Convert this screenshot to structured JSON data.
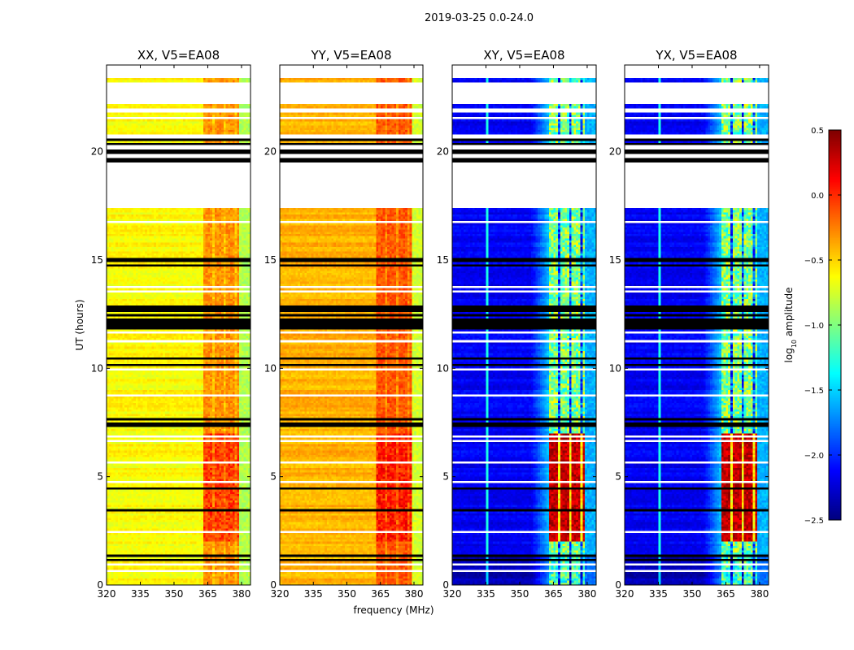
{
  "chart_data": {
    "type": "heatmap",
    "title": "2019-03-25 0.0-24.0",
    "xlabel": "frequency (MHz)",
    "ylabel": "UT (hours)",
    "xlim": [
      320,
      384
    ],
    "ylim": [
      0,
      24
    ],
    "xticks": [
      "320",
      "335",
      "350",
      "365",
      "380"
    ],
    "xtick_values": [
      320,
      335,
      350,
      365,
      380
    ],
    "yticks": [
      "0",
      "5",
      "10",
      "15",
      "20"
    ],
    "ytick_values": [
      0,
      5,
      10,
      15,
      20
    ],
    "colorbar": {
      "label": "log10 amplitude",
      "label_main": "log",
      "label_sub": "10",
      "label_rest": " amplitude",
      "range": [
        -2.5,
        0.5
      ],
      "ticks": [
        "0.5",
        "0.0",
        "−0.5",
        "−1.0",
        "−1.5",
        "−2.0",
        "−2.5"
      ],
      "tick_values": [
        0.5,
        0.0,
        -0.5,
        -1.0,
        -1.5,
        -2.0,
        -2.5
      ],
      "colormap": "jet"
    },
    "time_resolution_hours": 0.1,
    "freq_resolution_mhz": 1,
    "flagged_white_hours": [
      [
        17.45,
        19.55
      ],
      [
        19.75,
        19.95
      ],
      [
        20.05,
        20.3
      ],
      [
        20.65,
        20.8
      ],
      [
        21.5,
        21.65
      ],
      [
        21.8,
        22.05
      ],
      [
        22.2,
        23.2
      ],
      [
        23.4,
        24
      ]
    ],
    "black_flag_hours": [
      [
        19.55,
        19.72
      ],
      [
        19.95,
        20.05
      ],
      [
        20.3,
        20.38
      ],
      [
        20.52,
        20.6
      ],
      [
        11.95,
        12.05
      ],
      [
        12.15,
        12.3
      ],
      [
        12.4,
        12.5
      ],
      [
        12.6,
        12.75
      ],
      [
        12.8,
        12.9
      ],
      [
        14.95,
        15.05
      ],
      [
        14.75,
        14.82
      ],
      [
        10.45,
        10.52
      ],
      [
        10.15,
        10.22
      ],
      [
        7.35,
        7.45
      ],
      [
        7.6,
        7.65
      ],
      [
        4.45,
        4.52
      ],
      [
        3.45,
        3.52
      ],
      [
        1.35,
        1.42
      ],
      [
        1.15,
        1.2
      ],
      [
        11.85,
        11.9
      ]
    ],
    "panels": [
      {
        "name": "XX, V5=EA08",
        "base": -0.62,
        "band_freq": [
          363,
          379
        ],
        "band_level": -0.3,
        "band_low_hours_level": -0.05,
        "edge_level": -0.85
      },
      {
        "name": "YY, V5=EA08",
        "base": -0.4,
        "band_freq": [
          363,
          379
        ],
        "band_level": -0.12,
        "band_low_hours_level": 0.05,
        "edge_level": -0.75
      },
      {
        "name": "XY, V5=EA08",
        "base": -2.15,
        "band_freq": [
          363,
          379
        ],
        "band_level": -1.0,
        "band_low_hours_level": 0.3,
        "edge_level": -1.6
      },
      {
        "name": "YX, V5=EA08",
        "base": -2.15,
        "band_freq": [
          363,
          379
        ],
        "band_level": -1.0,
        "band_low_hours_level": 0.3,
        "edge_level": -1.6
      }
    ]
  }
}
